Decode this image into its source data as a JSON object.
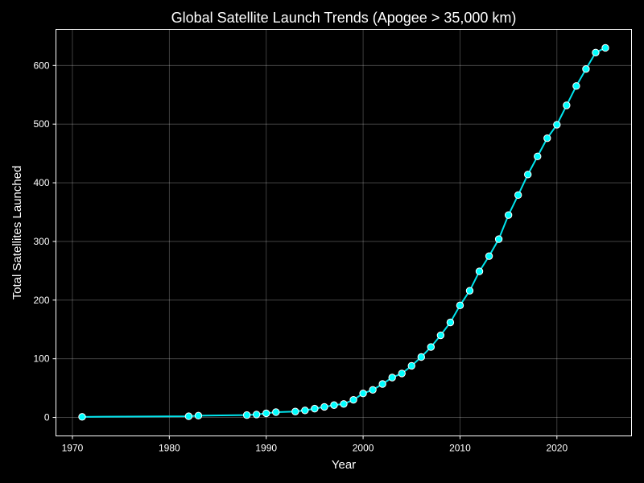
{
  "chart_data": {
    "type": "line",
    "title": "Global Satellite Launch Trends (Apogee > 35,000 km)",
    "xlabel": "Year",
    "ylabel": "Total Satellites Launched",
    "xlim": [
      1968.3,
      2027.7
    ],
    "ylim": [
      -31.5,
      661.5
    ],
    "x_ticks": [
      1970,
      1980,
      1990,
      2000,
      2010,
      2020
    ],
    "y_ticks": [
      0,
      100,
      200,
      300,
      400,
      500,
      600
    ],
    "grid": true,
    "series": [
      {
        "color": "#00e5ee",
        "marker_color": "#00ffff",
        "x": [
          1971,
          1982,
          1983,
          1988,
          1989,
          1990,
          1991,
          1993,
          1994,
          1995,
          1996,
          1997,
          1998,
          1999,
          2000,
          2001,
          2002,
          2003,
          2004,
          2005,
          2006,
          2007,
          2008,
          2009,
          2010,
          2011,
          2012,
          2013,
          2014,
          2015,
          2016,
          2017,
          2018,
          2019,
          2020,
          2021,
          2022,
          2023,
          2024,
          2025
        ],
        "y": [
          1,
          2,
          3,
          4,
          5,
          7,
          9,
          10,
          12,
          15,
          18,
          21,
          23,
          30,
          41,
          47,
          57,
          68,
          75,
          88,
          103,
          120,
          140,
          162,
          191,
          216,
          249,
          275,
          304,
          345,
          379,
          414,
          445,
          476,
          499,
          532,
          565,
          594,
          622,
          630
        ]
      }
    ]
  }
}
